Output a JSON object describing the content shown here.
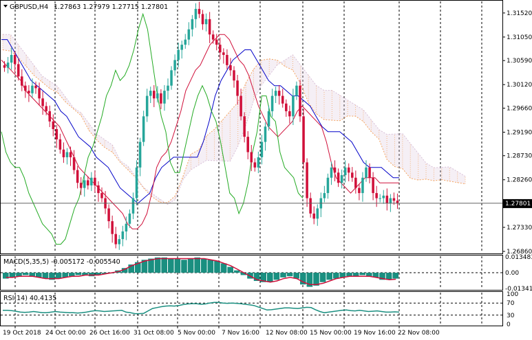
{
  "header": {
    "symbol": "GBPUSD,H4",
    "ohlc": "1.27863 1.27979 1.27715 1.27801"
  },
  "macd_panel": {
    "label": "MACD(5,35,5) -0.005172 -0.005540"
  },
  "rsi_panel": {
    "label": "RSI(14) 40.4135"
  },
  "colors": {
    "bull": "#26a69a",
    "bear": "#d0103a",
    "tenkan": "#d0103a",
    "kijun": "#0000c8",
    "chikou": "#22aa22",
    "senkou_a": "#f4a460",
    "senkou_b": "#d8bfd8",
    "macd_hist": "#1a8f80",
    "macd_signal": "#d0103a",
    "rsi_line": "#1a8f80",
    "price_line": "#606060"
  },
  "chart_data": [
    {
      "type": "candlestick",
      "title": "",
      "ylim": [
        1.2686,
        1.3172
      ],
      "y_ticks": [
        "1.31520",
        "1.31050",
        "1.30590",
        "1.30120",
        "1.29660",
        "1.29190",
        "1.28730",
        "1.28260",
        "1.27801",
        "1.27330",
        "1.26860"
      ],
      "x_ticks": [
        "19 Oct 2018",
        "24 Oct 00:00",
        "26 Oct 16:00",
        "31 Oct 08:00",
        "5 Nov 00:00",
        "7 Nov 16:00",
        "12 Nov 08:00",
        "15 Nov 00:00",
        "19 Nov 16:00",
        "22 Nov 08:00"
      ],
      "current_price": "1.27801",
      "close_series": [
        1.3045,
        1.3055,
        1.307,
        1.3052,
        1.3028,
        1.301,
        1.3,
        1.2995,
        1.301,
        1.3005,
        1.2985,
        1.297,
        1.296,
        1.294,
        1.2925,
        1.2905,
        1.2885,
        1.287,
        1.288,
        1.287,
        1.2845,
        1.282,
        1.281,
        1.2825,
        1.2815,
        1.283,
        1.2815,
        1.28,
        1.279,
        1.277,
        1.2745,
        1.272,
        1.27,
        1.271,
        1.2725,
        1.274,
        1.276,
        1.279,
        1.285,
        1.29,
        1.295,
        1.299,
        1.3,
        1.2985,
        1.2995,
        1.2975,
        1.3,
        1.301,
        1.304,
        1.306,
        1.308,
        1.309,
        1.31,
        1.312,
        1.314,
        1.316,
        1.315,
        1.313,
        1.314,
        1.311,
        1.31,
        1.309,
        1.3075,
        1.307,
        1.305,
        1.304,
        1.302,
        1.299,
        1.295,
        1.291,
        1.288,
        1.286,
        1.285,
        1.287,
        1.29,
        1.293,
        1.296,
        1.299,
        1.3,
        1.299,
        1.2975,
        1.296,
        1.295,
        1.299,
        1.301,
        1.295,
        1.286,
        1.279,
        1.276,
        1.275,
        1.277,
        1.279,
        1.28,
        1.283,
        1.285,
        1.284,
        1.282,
        1.2835,
        1.285,
        1.284,
        1.283,
        1.281,
        1.28,
        1.283,
        1.285,
        1.283,
        1.28,
        1.279,
        1.279,
        1.2795,
        1.278,
        1.279,
        1.2785,
        1.278
      ],
      "tenkan_series": [
        1.306,
        1.305,
        1.304,
        1.303,
        1.302,
        1.3,
        1.299,
        1.298,
        1.297,
        1.296,
        1.295,
        1.294,
        1.293,
        1.291,
        1.289,
        1.287,
        1.285,
        1.284,
        1.283,
        1.282,
        1.281,
        1.28,
        1.279,
        1.278,
        1.277,
        1.276,
        1.274,
        1.273,
        1.273,
        1.274,
        1.276,
        1.28,
        1.285,
        1.287,
        1.288,
        1.29,
        1.293,
        1.296,
        1.3,
        1.302,
        1.304,
        1.305,
        1.307,
        1.309,
        1.31,
        1.311,
        1.311,
        1.31,
        1.308,
        1.306,
        1.305,
        1.303,
        1.3,
        1.297,
        1.295,
        1.293,
        1.292,
        1.291,
        1.292,
        1.293,
        1.294,
        1.296,
        1.297,
        1.296,
        1.295,
        1.294,
        1.293,
        1.29,
        1.286,
        1.283,
        1.282,
        1.281,
        1.28,
        1.281,
        1.282,
        1.283,
        1.283,
        1.283,
        1.282,
        1.282,
        1.282,
        1.282,
        1.282
      ],
      "kijun_series": [
        1.31,
        1.31,
        1.308,
        1.306,
        1.304,
        1.302,
        1.301,
        1.3,
        1.299,
        1.298,
        1.296,
        1.295,
        1.293,
        1.291,
        1.29,
        1.289,
        1.287,
        1.286,
        1.285,
        1.283,
        1.281,
        1.28,
        1.279,
        1.278,
        1.279,
        1.28,
        1.283,
        1.285,
        1.286,
        1.287,
        1.287,
        1.287,
        1.287,
        1.287,
        1.29,
        1.294,
        1.299,
        1.302,
        1.304,
        1.306,
        1.307,
        1.308,
        1.308,
        1.306,
        1.304,
        1.302,
        1.301,
        1.301,
        1.3,
        1.299,
        1.299,
        1.298,
        1.297,
        1.295,
        1.293,
        1.292,
        1.292,
        1.292,
        1.291,
        1.29,
        1.288,
        1.286,
        1.285,
        1.285,
        1.285,
        1.284,
        1.283,
        1.283
      ],
      "chikou_series": [
        1.292,
        1.288,
        1.286,
        1.285,
        1.285,
        1.283,
        1.28,
        1.278,
        1.276,
        1.274,
        1.273,
        1.272,
        1.27,
        1.27,
        1.271,
        1.274,
        1.277,
        1.279,
        1.283,
        1.287,
        1.289,
        1.292,
        1.295,
        1.299,
        1.301,
        1.304,
        1.302,
        1.303,
        1.305,
        1.308,
        1.312,
        1.315,
        1.312,
        1.306,
        1.3,
        1.295,
        1.292,
        1.286,
        1.284,
        1.284,
        1.288,
        1.292,
        1.296,
        1.299,
        1.301,
        1.299,
        1.296,
        1.294,
        1.29,
        1.285,
        1.28,
        1.279,
        1.276,
        1.278,
        1.282,
        1.288,
        1.292,
        1.299,
        1.299,
        1.295,
        1.294,
        1.288,
        1.285,
        1.284,
        1.283,
        1.28,
        1.279
      ]
    },
    {
      "type": "bar",
      "title": "",
      "y_ticks": [
        "0.013483",
        "0.00",
        "-0.013415"
      ],
      "hist_series": [
        -0.005,
        -0.004,
        -0.003,
        -0.002,
        -0.003,
        -0.004,
        -0.005,
        -0.006,
        -0.005,
        -0.004,
        -0.003,
        -0.002,
        -0.002,
        -0.003,
        -0.002,
        -0.001,
        0.0,
        0.002,
        0.004,
        0.007,
        0.009,
        0.011,
        0.012,
        0.013,
        0.013,
        0.012,
        0.012,
        0.011,
        0.012,
        0.013,
        0.012,
        0.011,
        0.01,
        0.008,
        0.005,
        0.002,
        -0.002,
        -0.005,
        -0.007,
        -0.008,
        -0.008,
        -0.006,
        -0.004,
        -0.003,
        -0.005,
        -0.01,
        -0.012,
        -0.011,
        -0.008,
        -0.006,
        -0.005,
        -0.004,
        -0.003,
        -0.003,
        -0.002,
        -0.003,
        -0.004,
        -0.006,
        -0.006,
        -0.005
      ],
      "signal_series": [
        -0.004,
        -0.004,
        -0.003,
        -0.003,
        -0.003,
        -0.004,
        -0.005,
        -0.005,
        -0.005,
        -0.004,
        -0.003,
        -0.003,
        -0.002,
        -0.002,
        -0.002,
        -0.001,
        0.0,
        0.001,
        0.003,
        0.006,
        0.008,
        0.01,
        0.011,
        0.012,
        0.012,
        0.012,
        0.012,
        0.012,
        0.012,
        0.012,
        0.012,
        0.011,
        0.01,
        0.008,
        0.006,
        0.003,
        0.0,
        -0.003,
        -0.006,
        -0.007,
        -0.008,
        -0.007,
        -0.005,
        -0.004,
        -0.005,
        -0.008,
        -0.01,
        -0.01,
        -0.009,
        -0.007,
        -0.005,
        -0.004,
        -0.003,
        -0.003,
        -0.003,
        -0.003,
        -0.004,
        -0.005,
        -0.006,
        -0.0055
      ]
    },
    {
      "type": "line",
      "title": "",
      "ylim": [
        0,
        100
      ],
      "y_ticks": [
        "100",
        "70",
        "30",
        "0"
      ],
      "levels": [
        70,
        30
      ],
      "rsi_series": [
        46,
        46,
        45,
        43,
        40,
        39,
        40,
        42,
        40,
        38,
        38,
        40,
        42,
        40,
        39,
        38,
        38,
        37,
        38,
        40,
        43,
        45,
        44,
        42,
        43,
        44,
        45,
        46,
        40,
        38,
        35,
        35,
        36,
        44,
        52,
        55,
        58,
        60,
        61,
        60,
        62,
        65,
        67,
        68,
        68,
        66,
        67,
        70,
        72,
        72,
        70,
        69,
        70,
        69,
        68,
        66,
        64,
        62,
        57,
        52,
        47,
        48,
        50,
        52,
        54,
        54,
        53,
        52,
        54,
        56,
        55,
        48,
        42,
        38,
        40,
        42,
        44,
        46,
        47,
        45,
        44,
        46,
        44,
        42,
        43,
        44,
        42,
        40,
        40,
        41,
        40
      ]
    }
  ]
}
